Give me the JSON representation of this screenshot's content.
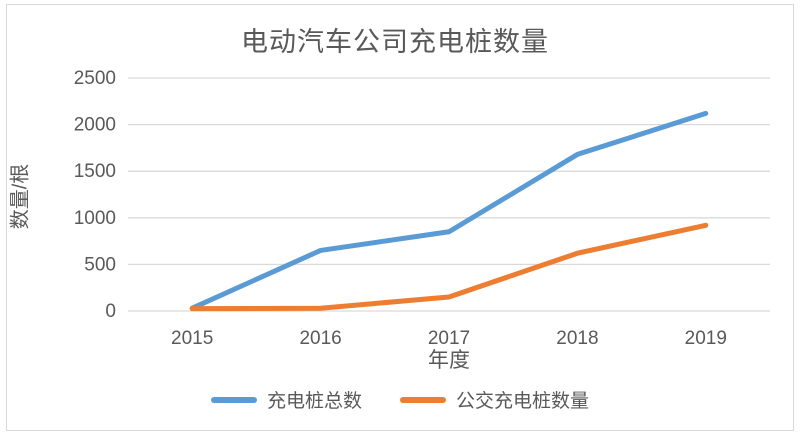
{
  "chart_data": {
    "type": "line",
    "title": "电动汽车公司充电桩数量",
    "xlabel": "年度",
    "ylabel": "数量/根",
    "categories": [
      "2015",
      "2016",
      "2017",
      "2018",
      "2019"
    ],
    "series": [
      {
        "name": "充电桩总数",
        "color": "#5B9BD5",
        "values": [
          30,
          650,
          850,
          1680,
          2120
        ]
      },
      {
        "name": "公交充电桩数量",
        "color": "#ED7D31",
        "values": [
          25,
          30,
          150,
          620,
          920
        ]
      }
    ],
    "ylim": [
      0,
      2500
    ],
    "yticks": [
      0,
      500,
      1000,
      1500,
      2000,
      2500
    ],
    "grid": "horizontal",
    "legend_position": "bottom",
    "line_width": 5,
    "colors": {
      "text": "#595959",
      "gridline": "#D9D9D9",
      "frame": "#D9D9D9",
      "background": "#FFFFFF"
    }
  }
}
